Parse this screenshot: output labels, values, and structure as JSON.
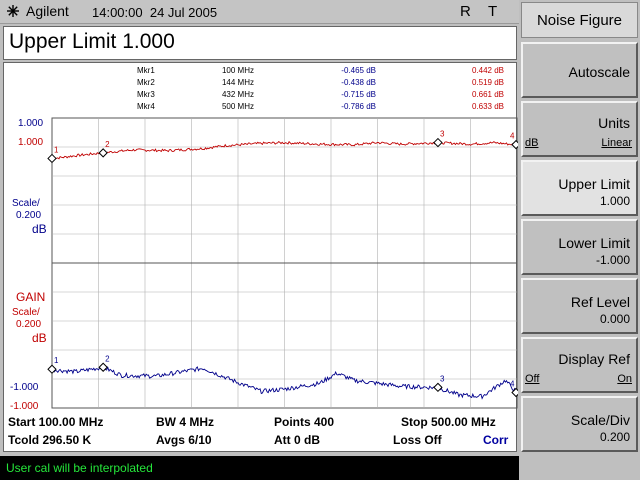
{
  "header": {
    "brand": "Agilent",
    "time": "14:00:00",
    "date": "24 Jul 2005",
    "indicator_r": "R",
    "indicator_t": "T"
  },
  "title": "Upper Limit 1.000",
  "markers": [
    {
      "name": "Mkr1",
      "freq": "100 MHz",
      "gain": "-0.465 dB",
      "nf": "0.442 dB"
    },
    {
      "name": "Mkr2",
      "freq": "144 MHz",
      "gain": "-0.438 dB",
      "nf": "0.519 dB"
    },
    {
      "name": "Mkr3",
      "freq": "432 MHz",
      "gain": "-0.715 dB",
      "nf": "0.661 dB"
    },
    {
      "name": "Mkr4",
      "freq": "500 MHz",
      "gain": "-0.786 dB",
      "nf": "0.633 dB"
    }
  ],
  "upper_graph": {
    "ref_top_blue": "1.000",
    "ref_top_red": "1.000",
    "scale_label": "Scale/",
    "scale_value": "0.200",
    "unit": "dB"
  },
  "lower_graph": {
    "name": "GAIN",
    "scale_label": "Scale/",
    "scale_value": "0.200",
    "unit": "dB",
    "ref_bottom_blue": "-1.000",
    "ref_bottom_red": "-1.000"
  },
  "info": {
    "start": "Start 100.00 MHz",
    "bw": "BW 4 MHz",
    "points": "Points 400",
    "stop": "Stop 500.00 MHz",
    "tcold": "Tcold 296.50 K",
    "avgs": "Avgs 6/10",
    "att": "Att 0 dB",
    "loss": "Loss Off",
    "corr": "Corr"
  },
  "status_message": "User cal will be interpolated",
  "softkeys": {
    "menu_title": "Noise Figure",
    "autoscale": "Autoscale",
    "units": {
      "label": "Units",
      "opt_left": "dB",
      "opt_right": "Linear"
    },
    "upper_limit": {
      "label": "Upper Limit",
      "value": "1.000"
    },
    "lower_limit": {
      "label": "Lower Limit",
      "value": "-1.000"
    },
    "ref_level": {
      "label": "Ref Level",
      "value": "0.000"
    },
    "display_ref": {
      "label": "Display Ref",
      "opt_left": "Off",
      "opt_right": "On"
    },
    "scale_div": {
      "label": "Scale/Div",
      "value": "0.200"
    }
  },
  "chart_data": {
    "type": "line",
    "x_start_mhz": 100,
    "x_stop_mhz": 500,
    "colors": {
      "noise_figure": "#c00000",
      "gain": "#00008b",
      "grid": "#b0b0b0",
      "status_text": "#25e63a"
    },
    "noise_figure": {
      "ylim": [
        -1.0,
        1.0
      ],
      "x": [
        100,
        120,
        144,
        170,
        200,
        230,
        250,
        280,
        300,
        330,
        360,
        380,
        400,
        432,
        460,
        480,
        500
      ],
      "y": [
        0.44,
        0.48,
        0.52,
        0.56,
        0.55,
        0.58,
        0.62,
        0.65,
        0.66,
        0.64,
        0.63,
        0.66,
        0.64,
        0.66,
        0.64,
        0.66,
        0.63
      ]
    },
    "gain": {
      "ylim": [
        -1.0,
        1.0
      ],
      "x": [
        100,
        120,
        144,
        160,
        190,
        230,
        260,
        280,
        300,
        330,
        345,
        360,
        380,
        400,
        432,
        450,
        470,
        490,
        500
      ],
      "y": [
        -0.47,
        -0.5,
        -0.44,
        -0.55,
        -0.56,
        -0.45,
        -0.65,
        -0.77,
        -0.74,
        -0.66,
        -0.52,
        -0.62,
        -0.66,
        -0.7,
        -0.72,
        -0.82,
        -0.84,
        -0.62,
        -0.79
      ]
    }
  }
}
